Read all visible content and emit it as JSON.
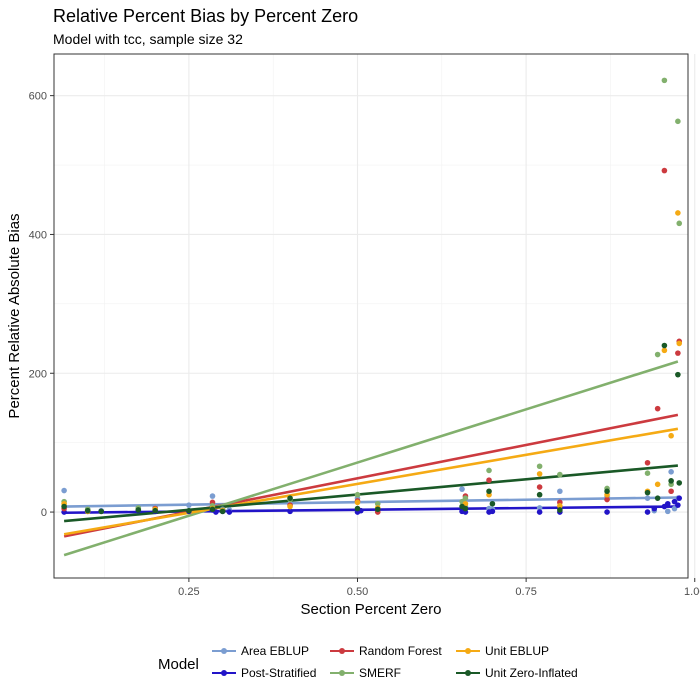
{
  "chart_data": {
    "type": "scatter",
    "title": "Relative Percent Bias by Percent Zero",
    "subtitle": "Model with tcc, sample size 32",
    "xlabel": "Section Percent Zero",
    "ylabel": "Percent Relative Absolute Bias",
    "xlim": [
      0.05,
      0.99
    ],
    "ylim": [
      -95,
      660
    ],
    "xticks": [
      0.25,
      0.5,
      0.75,
      1.0
    ],
    "xtick_labels": [
      "0.25",
      "0.50",
      "0.75",
      "1.00"
    ],
    "yticks": [
      0,
      200,
      400,
      600
    ],
    "ytick_labels": [
      "0",
      "200",
      "400",
      "600"
    ],
    "grid": true,
    "legend_title": "Model",
    "legend_position": "bottom",
    "series": [
      {
        "name": "Area EBLUP",
        "color": "#7b9dd1",
        "trend": {
          "x": [
            0.065,
            0.975
          ],
          "y": [
            8,
            21
          ]
        },
        "points": [
          [
            0.065,
            31
          ],
          [
            0.1,
            3
          ],
          [
            0.12,
            2
          ],
          [
            0.175,
            4
          ],
          [
            0.2,
            7
          ],
          [
            0.25,
            10
          ],
          [
            0.285,
            23
          ],
          [
            0.3,
            4
          ],
          [
            0.31,
            3
          ],
          [
            0.4,
            12
          ],
          [
            0.5,
            20
          ],
          [
            0.53,
            3
          ],
          [
            0.655,
            33
          ],
          [
            0.66,
            8
          ],
          [
            0.695,
            5
          ],
          [
            0.7,
            4
          ],
          [
            0.77,
            6
          ],
          [
            0.8,
            30
          ],
          [
            0.87,
            22
          ],
          [
            0.93,
            20
          ],
          [
            0.94,
            2
          ],
          [
            0.96,
            1
          ],
          [
            0.965,
            58
          ],
          [
            0.97,
            5
          ],
          [
            0.975,
            20
          ]
        ]
      },
      {
        "name": "Post-Stratified",
        "color": "#2214c8",
        "trend": {
          "x": [
            0.065,
            0.975
          ],
          "y": [
            -1,
            8
          ]
        },
        "points": [
          [
            0.065,
            0
          ],
          [
            0.1,
            1
          ],
          [
            0.12,
            1
          ],
          [
            0.175,
            2
          ],
          [
            0.2,
            1
          ],
          [
            0.25,
            1
          ],
          [
            0.285,
            3
          ],
          [
            0.29,
            0
          ],
          [
            0.3,
            1
          ],
          [
            0.31,
            0
          ],
          [
            0.4,
            1
          ],
          [
            0.5,
            0
          ],
          [
            0.505,
            2
          ],
          [
            0.53,
            1
          ],
          [
            0.655,
            1
          ],
          [
            0.66,
            0
          ],
          [
            0.695,
            0
          ],
          [
            0.7,
            1
          ],
          [
            0.77,
            0
          ],
          [
            0.8,
            0
          ],
          [
            0.87,
            0
          ],
          [
            0.93,
            0
          ],
          [
            0.94,
            5
          ],
          [
            0.955,
            8
          ],
          [
            0.96,
            12
          ],
          [
            0.97,
            15
          ],
          [
            0.975,
            10
          ],
          [
            0.977,
            20
          ]
        ]
      },
      {
        "name": "Random Forest",
        "color": "#cc3a3f",
        "trend": {
          "x": [
            0.065,
            0.975
          ],
          "y": [
            -35,
            140
          ]
        },
        "points": [
          [
            0.065,
            5
          ],
          [
            0.1,
            2
          ],
          [
            0.2,
            5
          ],
          [
            0.285,
            14
          ],
          [
            0.3,
            3
          ],
          [
            0.4,
            10
          ],
          [
            0.5,
            16
          ],
          [
            0.53,
            0
          ],
          [
            0.66,
            23
          ],
          [
            0.695,
            46
          ],
          [
            0.77,
            36
          ],
          [
            0.8,
            14
          ],
          [
            0.87,
            18
          ],
          [
            0.93,
            71
          ],
          [
            0.945,
            149
          ],
          [
            0.955,
            492
          ],
          [
            0.965,
            30
          ],
          [
            0.975,
            229
          ],
          [
            0.977,
            246
          ]
        ]
      },
      {
        "name": "SMERF",
        "color": "#82b06d",
        "trend": {
          "x": [
            0.065,
            0.975
          ],
          "y": [
            -62,
            217
          ]
        },
        "points": [
          [
            0.065,
            15
          ],
          [
            0.1,
            4
          ],
          [
            0.175,
            6
          ],
          [
            0.2,
            3
          ],
          [
            0.285,
            9
          ],
          [
            0.3,
            3
          ],
          [
            0.4,
            18
          ],
          [
            0.5,
            25
          ],
          [
            0.53,
            12
          ],
          [
            0.655,
            15
          ],
          [
            0.66,
            20
          ],
          [
            0.695,
            60
          ],
          [
            0.77,
            66
          ],
          [
            0.8,
            54
          ],
          [
            0.87,
            34
          ],
          [
            0.93,
            56
          ],
          [
            0.945,
            227
          ],
          [
            0.955,
            622
          ],
          [
            0.965,
            40
          ],
          [
            0.975,
            563
          ],
          [
            0.977,
            416
          ]
        ]
      },
      {
        "name": "Unit EBLUP",
        "color": "#f5aa14",
        "trend": {
          "x": [
            0.065,
            0.975
          ],
          "y": [
            -32,
            120
          ]
        },
        "points": [
          [
            0.065,
            12
          ],
          [
            0.1,
            1
          ],
          [
            0.2,
            4
          ],
          [
            0.285,
            5
          ],
          [
            0.3,
            2
          ],
          [
            0.4,
            8
          ],
          [
            0.5,
            14
          ],
          [
            0.53,
            6
          ],
          [
            0.66,
            12
          ],
          [
            0.695,
            25
          ],
          [
            0.77,
            55
          ],
          [
            0.8,
            9
          ],
          [
            0.87,
            25
          ],
          [
            0.93,
            30
          ],
          [
            0.945,
            40
          ],
          [
            0.955,
            233
          ],
          [
            0.965,
            110
          ],
          [
            0.975,
            431
          ],
          [
            0.977,
            243
          ]
        ]
      },
      {
        "name": "Unit Zero-Inflated",
        "color": "#1a5927",
        "trend": {
          "x": [
            0.065,
            0.975
          ],
          "y": [
            -13,
            67
          ]
        },
        "points": [
          [
            0.065,
            8
          ],
          [
            0.1,
            2
          ],
          [
            0.12,
            1
          ],
          [
            0.175,
            3
          ],
          [
            0.2,
            2
          ],
          [
            0.25,
            2
          ],
          [
            0.285,
            4
          ],
          [
            0.3,
            1
          ],
          [
            0.4,
            20
          ],
          [
            0.5,
            5
          ],
          [
            0.53,
            4
          ],
          [
            0.655,
            8
          ],
          [
            0.66,
            5
          ],
          [
            0.695,
            30
          ],
          [
            0.7,
            12
          ],
          [
            0.77,
            25
          ],
          [
            0.8,
            3
          ],
          [
            0.87,
            30
          ],
          [
            0.93,
            28
          ],
          [
            0.945,
            20
          ],
          [
            0.955,
            240
          ],
          [
            0.965,
            45
          ],
          [
            0.975,
            198
          ],
          [
            0.977,
            42
          ]
        ]
      }
    ]
  }
}
